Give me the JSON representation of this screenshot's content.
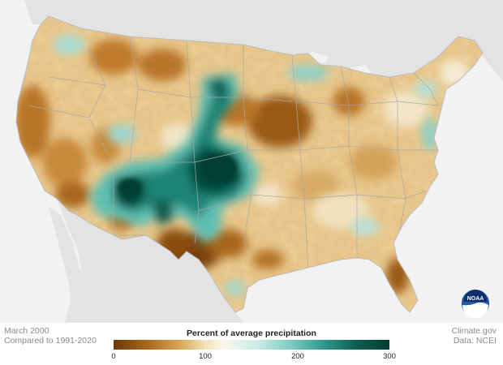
{
  "map": {
    "title": "",
    "period": "March 2000",
    "baseline": "Compared to 1991-2020"
  },
  "legend": {
    "title": "Percent of average precipitation",
    "ticks": [
      "0",
      "100",
      "200",
      "300"
    ],
    "tick_values": [
      0,
      100,
      200,
      300
    ],
    "range": [
      0,
      300
    ],
    "colors": [
      "#6b3a06",
      "#a8671a",
      "#d8a655",
      "#f1e0b6",
      "#fbf7ee",
      "#cdebe6",
      "#7fcdc3",
      "#2f9a8c",
      "#0d5e52",
      "#003d33"
    ]
  },
  "credits": {
    "source": "Climate.gov",
    "data": "Data: NCEI"
  },
  "logo": {
    "label": "NOAA",
    "icon": "noaa-logo-icon",
    "colors": {
      "outer": "#1e5aa8",
      "inner": "#0c2f6b",
      "bird": "#ffffff"
    }
  },
  "colors": {
    "water": "#f2f2f2",
    "neighbor_land": "#e3e3e3",
    "border": "#bbbbbb",
    "state_lines": "#a8a8a8"
  }
}
